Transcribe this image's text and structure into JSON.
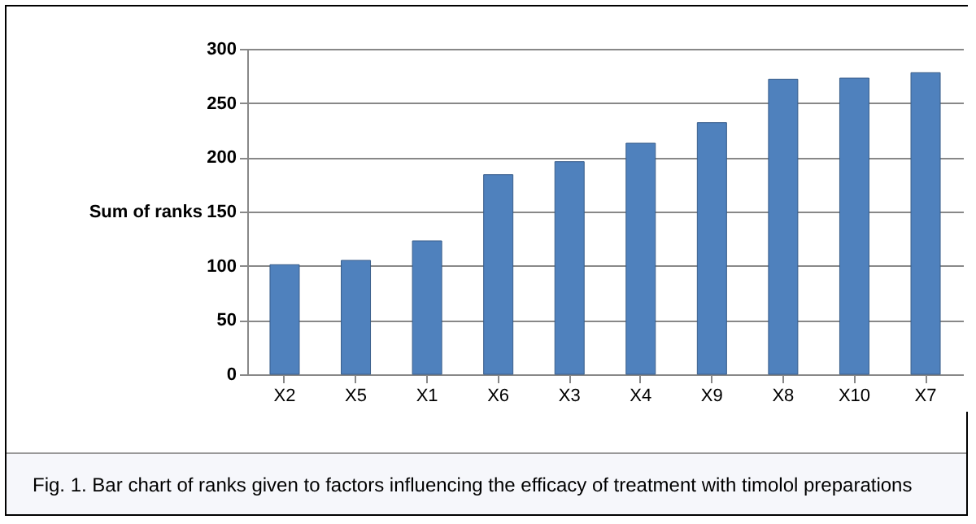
{
  "chart_data": {
    "type": "bar",
    "ylabel": "Sum of ranks",
    "categories": [
      "X2",
      "X5",
      "X1",
      "X6",
      "X3",
      "X4",
      "X9",
      "X8",
      "X10",
      "X7"
    ],
    "values": [
      101,
      105,
      123,
      184,
      196,
      213,
      232,
      272,
      273,
      278
    ],
    "color": "#4f81bd",
    "ylim": [
      0,
      300
    ],
    "yticks": [
      0,
      50,
      100,
      150,
      200,
      250,
      300
    ],
    "grid": "y",
    "annotations": [
      "Fig. 1. Bar chart of ranks given to factors influencing the efficacy of treatment with timolol preparations"
    ]
  }
}
